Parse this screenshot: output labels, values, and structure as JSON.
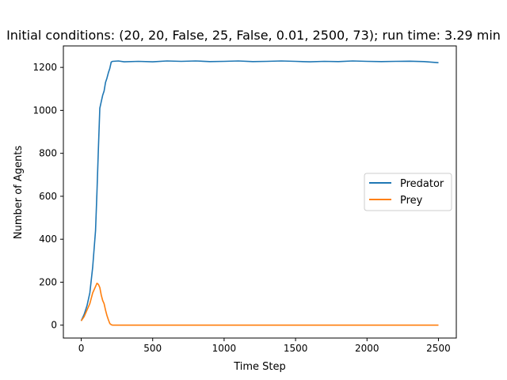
{
  "chart_data": {
    "type": "line",
    "title": "Initial conditions: (20, 20, False, 25, False, 0.01, 2500, 73); run time: 3.29 min",
    "xlabel": "Time Step",
    "ylabel": "Number of Agents",
    "xlim": [
      -125,
      2625
    ],
    "ylim": [
      -60,
      1300
    ],
    "xticks": [
      0,
      500,
      1000,
      1500,
      2000,
      2500
    ],
    "yticks": [
      0,
      200,
      400,
      600,
      800,
      1000,
      1200
    ],
    "grid": false,
    "legend_position": "center-right",
    "series": [
      {
        "name": "Predator",
        "color": "#1f77b4",
        "x": [
          0,
          20,
          40,
          60,
          80,
          100,
          110,
          120,
          130,
          140,
          150,
          160,
          170,
          180,
          190,
          200,
          210,
          220,
          260,
          300,
          400,
          500,
          600,
          700,
          800,
          900,
          1000,
          1100,
          1200,
          1300,
          1400,
          1500,
          1600,
          1700,
          1800,
          1900,
          2000,
          2100,
          2200,
          2300,
          2400,
          2500
        ],
        "y": [
          20,
          50,
          90,
          150,
          270,
          440,
          620,
          820,
          1010,
          1040,
          1070,
          1090,
          1130,
          1150,
          1175,
          1195,
          1225,
          1228,
          1230,
          1226,
          1228,
          1226,
          1230,
          1228,
          1230,
          1227,
          1228,
          1230,
          1227,
          1228,
          1230,
          1228,
          1226,
          1228,
          1227,
          1230,
          1228,
          1227,
          1228,
          1229,
          1227,
          1222
        ]
      },
      {
        "name": "Prey",
        "color": "#ff7f0e",
        "x": [
          0,
          20,
          40,
          60,
          80,
          100,
          110,
          120,
          130,
          140,
          150,
          160,
          170,
          180,
          190,
          200,
          210,
          220,
          240,
          300,
          500,
          1000,
          1500,
          2000,
          2500
        ],
        "y": [
          20,
          40,
          70,
          100,
          150,
          180,
          195,
          190,
          175,
          140,
          115,
          100,
          70,
          45,
          25,
          8,
          2,
          0,
          0,
          0,
          0,
          0,
          0,
          0,
          0
        ]
      }
    ]
  }
}
